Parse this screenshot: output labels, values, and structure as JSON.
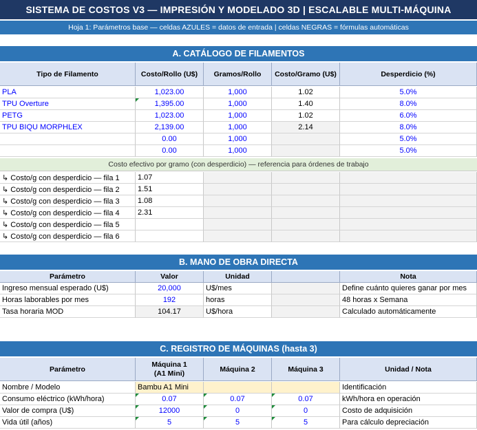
{
  "title": "SISTEMA DE COSTOS V3 — IMPRESIÓN Y MODELADO 3D  |  ESCALABLE MULTI-MÁQUINA",
  "subtitle": "Hoja 1: Parámetros base — celdas AZULES = datos de entrada  |  celdas NEGRAS = fórmulas automáticas",
  "section_a": {
    "title": "A. CATÁLOGO DE FILAMENTOS",
    "headers": [
      "Tipo de Filamento",
      "Costo/Rollo (U$)",
      "Gramos/Rollo",
      "Costo/Gramo (U$)",
      "Desperdicio (%)"
    ],
    "rows": [
      [
        "PLA",
        "1,023.00",
        "1,000",
        "1.02",
        "5.0%"
      ],
      [
        "TPU Overture",
        "1,395.00",
        "1,000",
        "1.40",
        "8.0%"
      ],
      [
        "PETG",
        "1,023.00",
        "1,000",
        "1.02",
        "6.0%"
      ],
      [
        "TPU BIQU MORPHLEX",
        "2,139.00",
        "1,000",
        "2.14",
        "8.0%"
      ],
      [
        "",
        "0.00",
        "1,000",
        "",
        "5.0%"
      ],
      [
        "",
        "0.00",
        "1,000",
        "",
        "5.0%"
      ]
    ],
    "note": "Costo efectivo por gramo (con desperdicio) — referencia para órdenes de trabajo",
    "effective": [
      [
        "↳ Costo/g con desperdicio — fila 1",
        "1.07"
      ],
      [
        "↳ Costo/g con desperdicio — fila 2",
        "1.51"
      ],
      [
        "↳ Costo/g con desperdicio — fila 3",
        "1.08"
      ],
      [
        "↳ Costo/g con desperdicio — fila 4",
        "2.31"
      ],
      [
        "↳ Costo/g con desperdicio — fila 5",
        ""
      ],
      [
        "↳ Costo/g con desperdicio — fila 6",
        ""
      ]
    ]
  },
  "section_b": {
    "title": "B. MANO DE OBRA DIRECTA",
    "headers": [
      "Parámetro",
      "Valor",
      "Unidad",
      "",
      "Nota"
    ],
    "rows": [
      [
        "Ingreso mensual esperado (U$)",
        "20,000",
        "U$/mes",
        "",
        "Define cuánto quieres ganar por mes"
      ],
      [
        "Horas laborables por mes",
        "192",
        "horas",
        "",
        "48 horas x Semana"
      ],
      [
        "Tasa horaria MOD",
        "104.17",
        "U$/hora",
        "",
        "Calculado automáticamente"
      ]
    ]
  },
  "section_c": {
    "title": "C. REGISTRO DE MÁQUINAS (hasta 3)",
    "headers": [
      "Parámetro",
      "Máquina 1\n(A1 Mini)",
      "Máquina 2",
      "Máquina 3",
      "Unidad / Nota"
    ],
    "rows": [
      [
        "Nombre / Modelo",
        "Bambu A1 Mini",
        "",
        "",
        "Identificación"
      ],
      [
        "Consumo eléctrico (kWh/hora)",
        "0.07",
        "0.07",
        "0.07",
        "kWh/hora en operación"
      ],
      [
        "Valor de compra (U$)",
        "12000",
        "0",
        "0",
        "Costo de adquisición"
      ],
      [
        "Vida útil (años)",
        "5",
        "5",
        "5",
        "Para cálculo depreciación"
      ]
    ]
  }
}
